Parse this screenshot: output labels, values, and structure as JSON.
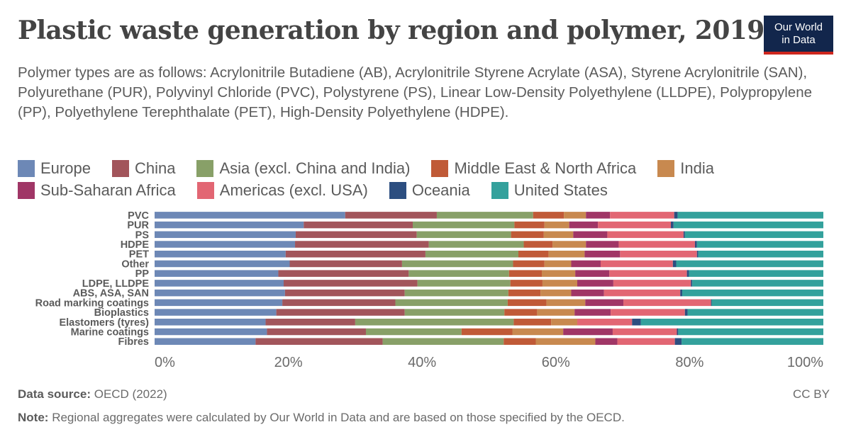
{
  "header": {
    "title": "Plastic waste generation by region and polymer, 2019",
    "subtitle": "Polymer types are as follows: Acrylonitrile Butadiene (AB), Acrylonitrile Styrene Acrylate (ASA), Styrene Acrylonitrile (SAN), Polyurethane (PUR), Polyvinyl Chloride (PVC), Polystyrene (PS), Linear Low-Density Polyethylene (LLDPE), Polypropylene (PP), Polyethylene Terephthalate (PET), High-Density Polyethylene (HDPE)."
  },
  "logo": {
    "line1": "Our World",
    "line2": "in Data"
  },
  "footer": {
    "source_label": "Data source:",
    "source_text": "OECD (2022)",
    "license": "CC BY",
    "note_label": "Note:",
    "note_text": "Regional aggregates were calculated by Our World in Data and are based on those specified by the OECD."
  },
  "chart_data": {
    "type": "bar",
    "orientation": "horizontal",
    "stacked": true,
    "stack_mode": "relative",
    "categories": [
      "PVC",
      "PUR",
      "PS",
      "HDPE",
      "PET",
      "Other",
      "PP",
      "LDPE, LLDPE",
      "ABS, ASA, SAN",
      "Road marking coatings",
      "Bioplastics",
      "Elastomers (tyres)",
      "Marine coatings",
      "Fibres"
    ],
    "series": [
      {
        "name": "Europe",
        "color": "#6d88b6",
        "values": [
          28.5,
          22.3,
          21.1,
          21.0,
          19.6,
          20.2,
          18.5,
          19.3,
          19.5,
          19.1,
          18.2,
          16.6,
          16.8,
          15.1
        ]
      },
      {
        "name": "China",
        "color": "#a2555b",
        "values": [
          13.7,
          16.3,
          18.1,
          20.0,
          20.9,
          16.8,
          19.5,
          20.0,
          17.9,
          16.9,
          19.2,
          13.4,
          14.8,
          19.0
        ]
      },
      {
        "name": "Asia (excl. China and India)",
        "color": "#88a068",
        "values": [
          14.4,
          15.2,
          14.1,
          14.2,
          13.9,
          16.6,
          15.0,
          13.9,
          15.5,
          16.8,
          14.9,
          23.7,
          14.3,
          18.1
        ]
      },
      {
        "name": "Middle East & North Africa",
        "color": "#c05a37",
        "values": [
          4.6,
          4.5,
          4.9,
          4.3,
          4.5,
          4.7,
          4.9,
          4.8,
          4.8,
          5.8,
          4.9,
          5.6,
          7.6,
          4.8
        ]
      },
      {
        "name": "India",
        "color": "#c8894f",
        "values": [
          3.3,
          3.7,
          4.4,
          5.0,
          5.4,
          4.0,
          5.0,
          5.2,
          4.6,
          5.8,
          5.6,
          3.9,
          7.6,
          8.9
        ]
      },
      {
        "name": "Sub-Saharan Africa",
        "color": "#a03666",
        "values": [
          3.6,
          4.3,
          5.1,
          4.9,
          5.3,
          4.4,
          5.1,
          5.4,
          4.9,
          5.7,
          5.4,
          0.0,
          7.4,
          3.3
        ]
      },
      {
        "name": "Americas (excl. USA)",
        "color": "#e26673",
        "values": [
          9.6,
          10.9,
          11.4,
          11.4,
          11.5,
          10.8,
          11.6,
          11.6,
          11.4,
          13.1,
          11.1,
          8.2,
          9.6,
          8.6
        ]
      },
      {
        "name": "Oceania",
        "color": "#2c4e80",
        "values": [
          0.5,
          0.4,
          0.2,
          0.3,
          0.2,
          0.5,
          0.3,
          0.2,
          0.3,
          0.1,
          0.4,
          1.3,
          0.2,
          1.0
        ]
      },
      {
        "name": "United States",
        "color": "#33a19c",
        "values": [
          21.8,
          22.4,
          20.7,
          18.9,
          18.7,
          22.0,
          20.1,
          19.6,
          21.1,
          16.7,
          20.3,
          27.3,
          21.7,
          21.2
        ]
      }
    ],
    "xlim": [
      0,
      100
    ],
    "x_ticks": [
      0,
      20,
      40,
      60,
      80,
      100
    ],
    "x_tick_labels": [
      "0%",
      "20%",
      "40%",
      "60%",
      "80%",
      "100%"
    ],
    "legend_position": "top",
    "grid": false
  }
}
